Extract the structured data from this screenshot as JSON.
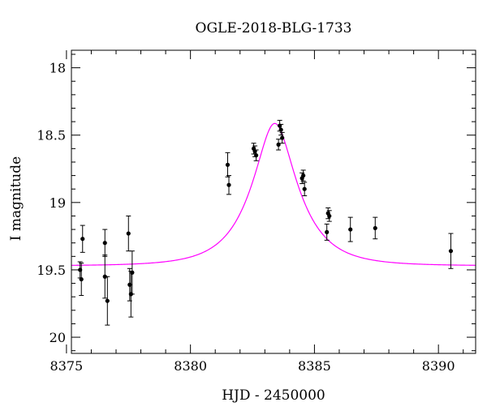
{
  "chart_data": {
    "type": "scatter",
    "title": "OGLE-2018-BLG-1733",
    "xlabel": "HJD - 2450000",
    "ylabel": "I magnitude",
    "xlim": [
      8375.2,
      8391.5
    ],
    "ylim": [
      20.12,
      17.87
    ],
    "y_inverted": true,
    "grid": false,
    "x_major_ticks": [
      8375,
      8380,
      8385,
      8390
    ],
    "x_minor_step": 1,
    "y_major_ticks": [
      18,
      18.5,
      19,
      19.5,
      20
    ],
    "y_minor_step": 0.1,
    "x_tick_labels": [
      "8375",
      "8380",
      "8385",
      "8390"
    ],
    "y_tick_labels": [
      "18",
      "18.5",
      "19",
      "19.5",
      "20"
    ],
    "model": {
      "color": "#ff00ff",
      "t0": 8383.4,
      "tE": 1.75,
      "u0": 0.4,
      "baseline_mag": 19.47,
      "blend_fraction": 1.0
    },
    "point_color": "#000000",
    "series": [
      {
        "points": [
          {
            "x": 8375.55,
            "y": 19.5,
            "err": 0.06
          },
          {
            "x": 8375.6,
            "y": 19.57,
            "err": 0.12
          },
          {
            "x": 8375.65,
            "y": 19.27,
            "err": 0.1
          },
          {
            "x": 8376.55,
            "y": 19.3,
            "err": 0.1
          },
          {
            "x": 8376.55,
            "y": 19.55,
            "err": 0.16
          },
          {
            "x": 8376.65,
            "y": 19.73,
            "err": 0.18
          },
          {
            "x": 8377.5,
            "y": 19.23,
            "err": 0.13
          },
          {
            "x": 8377.55,
            "y": 19.61,
            "err": 0.12
          },
          {
            "x": 8377.6,
            "y": 19.68,
            "err": 0.17
          },
          {
            "x": 8377.65,
            "y": 19.52,
            "err": 0.16
          },
          {
            "x": 8381.5,
            "y": 18.72,
            "err": 0.09
          },
          {
            "x": 8381.55,
            "y": 18.87,
            "err": 0.07
          },
          {
            "x": 8382.55,
            "y": 18.6,
            "err": 0.04
          },
          {
            "x": 8382.6,
            "y": 18.62,
            "err": 0.04
          },
          {
            "x": 8382.65,
            "y": 18.65,
            "err": 0.04
          },
          {
            "x": 8383.55,
            "y": 18.57,
            "err": 0.04
          },
          {
            "x": 8383.6,
            "y": 18.43,
            "err": 0.04
          },
          {
            "x": 8383.65,
            "y": 18.46,
            "err": 0.04
          },
          {
            "x": 8383.7,
            "y": 18.52,
            "err": 0.04
          },
          {
            "x": 8384.5,
            "y": 18.82,
            "err": 0.04
          },
          {
            "x": 8384.55,
            "y": 18.8,
            "err": 0.04
          },
          {
            "x": 8384.6,
            "y": 18.9,
            "err": 0.05
          },
          {
            "x": 8385.5,
            "y": 19.22,
            "err": 0.06
          },
          {
            "x": 8385.55,
            "y": 19.08,
            "err": 0.04
          },
          {
            "x": 8385.6,
            "y": 19.1,
            "err": 0.04
          },
          {
            "x": 8386.45,
            "y": 19.2,
            "err": 0.09
          },
          {
            "x": 8387.45,
            "y": 19.19,
            "err": 0.08
          },
          {
            "x": 8390.5,
            "y": 19.36,
            "err": 0.13
          }
        ]
      }
    ]
  }
}
